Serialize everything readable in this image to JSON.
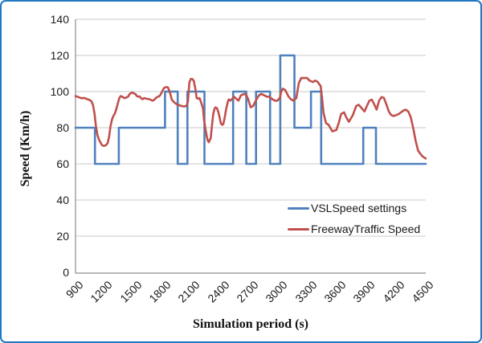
{
  "frame": {
    "border_color": "#1F78C1",
    "background": "#FFFFFF"
  },
  "styles": {
    "gridline_color": "#C8C8C8",
    "axis_line_color": "#8C8C8C",
    "tick_text_color": "#1A1A1A",
    "vsl_color": "#4F81BD",
    "traffic_color": "#C0504D"
  },
  "chart_data": {
    "type": "line",
    "title": "",
    "xlabel": "Simulation period (s)",
    "ylabel": "Speed (Km/h)",
    "xlim": [
      900,
      4500
    ],
    "ylim": [
      0,
      140
    ],
    "x_ticks": [
      900,
      1200,
      1500,
      1800,
      2100,
      2400,
      2700,
      3000,
      3300,
      3600,
      3900,
      4200,
      4500
    ],
    "y_ticks": [
      0,
      20,
      40,
      60,
      80,
      100,
      120,
      140
    ],
    "grid": "horizontal",
    "legend_position": "inside-bottom-right",
    "series": [
      {
        "name": "VSLSpeed settings",
        "color": "#4F81BD",
        "style": "step",
        "points": [
          [
            900,
            80
          ],
          [
            1100,
            80
          ],
          [
            1100,
            60
          ],
          [
            1345,
            60
          ],
          [
            1345,
            80
          ],
          [
            1820,
            80
          ],
          [
            1820,
            100
          ],
          [
            1950,
            100
          ],
          [
            1950,
            60
          ],
          [
            2050,
            60
          ],
          [
            2050,
            100
          ],
          [
            2225,
            100
          ],
          [
            2225,
            60
          ],
          [
            2520,
            60
          ],
          [
            2520,
            100
          ],
          [
            2655,
            100
          ],
          [
            2655,
            60
          ],
          [
            2755,
            60
          ],
          [
            2755,
            100
          ],
          [
            2900,
            100
          ],
          [
            2900,
            60
          ],
          [
            3005,
            60
          ],
          [
            3005,
            120
          ],
          [
            3150,
            120
          ],
          [
            3150,
            80
          ],
          [
            3320,
            80
          ],
          [
            3320,
            100
          ],
          [
            3425,
            100
          ],
          [
            3425,
            60
          ],
          [
            3858,
            60
          ],
          [
            3858,
            80
          ],
          [
            3988,
            80
          ],
          [
            3988,
            60
          ],
          [
            4500,
            60
          ]
        ]
      },
      {
        "name": "FreewayTraffic Speed",
        "color": "#C0504D",
        "style": "line",
        "points": [
          [
            900,
            97.5
          ],
          [
            930,
            97
          ],
          [
            960,
            96.3
          ],
          [
            990,
            96.5
          ],
          [
            1020,
            95.8
          ],
          [
            1050,
            95.2
          ],
          [
            1065,
            94.5
          ],
          [
            1080,
            92.5
          ],
          [
            1095,
            88
          ],
          [
            1110,
            81
          ],
          [
            1125,
            76
          ],
          [
            1140,
            73.5
          ],
          [
            1155,
            72
          ],
          [
            1170,
            70.5
          ],
          [
            1185,
            70
          ],
          [
            1200,
            70
          ],
          [
            1215,
            70.5
          ],
          [
            1230,
            71.5
          ],
          [
            1245,
            75
          ],
          [
            1260,
            81
          ],
          [
            1275,
            84.5
          ],
          [
            1290,
            86.5
          ],
          [
            1305,
            88
          ],
          [
            1320,
            90.5
          ],
          [
            1335,
            93.5
          ],
          [
            1350,
            96.4
          ],
          [
            1365,
            97.5
          ],
          [
            1380,
            97.2
          ],
          [
            1395,
            96.6
          ],
          [
            1410,
            96.4
          ],
          [
            1425,
            96.8
          ],
          [
            1440,
            97.2
          ],
          [
            1455,
            98.5
          ],
          [
            1470,
            99.2
          ],
          [
            1485,
            99.4
          ],
          [
            1500,
            99
          ],
          [
            1515,
            98.7
          ],
          [
            1530,
            97.5
          ],
          [
            1545,
            97.2
          ],
          [
            1560,
            97.3
          ],
          [
            1575,
            96.2
          ],
          [
            1590,
            95.8
          ],
          [
            1605,
            96.4
          ],
          [
            1620,
            96.2
          ],
          [
            1635,
            96
          ],
          [
            1650,
            95.8
          ],
          [
            1665,
            95.7
          ],
          [
            1680,
            95.2
          ],
          [
            1695,
            95
          ],
          [
            1710,
            95.5
          ],
          [
            1725,
            96.4
          ],
          [
            1740,
            97
          ],
          [
            1755,
            97.3
          ],
          [
            1770,
            98
          ],
          [
            1790,
            100
          ],
          [
            1810,
            102
          ],
          [
            1830,
            102.5
          ],
          [
            1850,
            102.3
          ],
          [
            1870,
            99.5
          ],
          [
            1890,
            95.5
          ],
          [
            1915,
            94
          ],
          [
            1940,
            93
          ],
          [
            1965,
            92.5
          ],
          [
            1990,
            92
          ],
          [
            2015,
            91.8
          ],
          [
            2040,
            92
          ],
          [
            2055,
            94.5
          ],
          [
            2070,
            105
          ],
          [
            2085,
            107
          ],
          [
            2100,
            107
          ],
          [
            2115,
            106
          ],
          [
            2130,
            102
          ],
          [
            2145,
            96.5
          ],
          [
            2160,
            96
          ],
          [
            2175,
            96.4
          ],
          [
            2190,
            94.2
          ],
          [
            2210,
            90.7
          ],
          [
            2220,
            84.6
          ],
          [
            2235,
            79.5
          ],
          [
            2250,
            75.1
          ],
          [
            2260,
            72.8
          ],
          [
            2270,
            72
          ],
          [
            2290,
            74.2
          ],
          [
            2300,
            80
          ],
          [
            2315,
            87.6
          ],
          [
            2330,
            90.7
          ],
          [
            2340,
            91.3
          ],
          [
            2355,
            90.7
          ],
          [
            2370,
            88.4
          ],
          [
            2385,
            84.6
          ],
          [
            2395,
            82.2
          ],
          [
            2410,
            81.6
          ],
          [
            2420,
            82.2
          ],
          [
            2435,
            86.1
          ],
          [
            2450,
            90.7
          ],
          [
            2465,
            94.2
          ],
          [
            2475,
            95.7
          ],
          [
            2490,
            95
          ],
          [
            2505,
            95.7
          ],
          [
            2520,
            96.4
          ],
          [
            2530,
            97.1
          ],
          [
            2545,
            96.4
          ],
          [
            2560,
            95.7
          ],
          [
            2575,
            95
          ],
          [
            2600,
            97.9
          ],
          [
            2625,
            98.5
          ],
          [
            2640,
            98.7
          ],
          [
            2660,
            97.5
          ],
          [
            2675,
            95.7
          ],
          [
            2700,
            91.3
          ],
          [
            2725,
            92
          ],
          [
            2760,
            95.7
          ],
          [
            2785,
            97.9
          ],
          [
            2810,
            98.7
          ],
          [
            2840,
            97.9
          ],
          [
            2865,
            97.2
          ],
          [
            2890,
            97.2
          ],
          [
            2925,
            95.7
          ],
          [
            2950,
            95
          ],
          [
            2975,
            95
          ],
          [
            3000,
            96.5
          ],
          [
            3015,
            100
          ],
          [
            3030,
            101.6
          ],
          [
            3055,
            100.9
          ],
          [
            3090,
            97.2
          ],
          [
            3115,
            95.7
          ],
          [
            3140,
            95
          ],
          [
            3170,
            96.4
          ],
          [
            3195,
            104.6
          ],
          [
            3220,
            107.5
          ],
          [
            3255,
            107.5
          ],
          [
            3280,
            107.5
          ],
          [
            3305,
            106.1
          ],
          [
            3340,
            105.3
          ],
          [
            3365,
            106.1
          ],
          [
            3390,
            105.3
          ],
          [
            3420,
            103
          ],
          [
            3435,
            96
          ],
          [
            3450,
            88
          ],
          [
            3475,
            82.5
          ],
          [
            3500,
            81.7
          ],
          [
            3540,
            78
          ],
          [
            3580,
            78.7
          ],
          [
            3605,
            82.5
          ],
          [
            3630,
            87.6
          ],
          [
            3660,
            88.5
          ],
          [
            3685,
            85.5
          ],
          [
            3710,
            83.3
          ],
          [
            3750,
            87
          ],
          [
            3785,
            92
          ],
          [
            3810,
            92.7
          ],
          [
            3835,
            91.2
          ],
          [
            3870,
            89
          ],
          [
            3895,
            92
          ],
          [
            3920,
            95
          ],
          [
            3945,
            95.5
          ],
          [
            3970,
            93
          ],
          [
            3995,
            90
          ],
          [
            4020,
            95
          ],
          [
            4045,
            97
          ],
          [
            4070,
            96.5
          ],
          [
            4095,
            93
          ],
          [
            4120,
            89
          ],
          [
            4145,
            87
          ],
          [
            4170,
            86.5
          ],
          [
            4195,
            87
          ],
          [
            4220,
            87.5
          ],
          [
            4245,
            88.5
          ],
          [
            4270,
            89.5
          ],
          [
            4295,
            90
          ],
          [
            4320,
            89
          ],
          [
            4345,
            86
          ],
          [
            4370,
            80
          ],
          [
            4395,
            73
          ],
          [
            4420,
            67.5
          ],
          [
            4445,
            65.5
          ],
          [
            4470,
            64
          ],
          [
            4500,
            63
          ]
        ]
      }
    ]
  }
}
